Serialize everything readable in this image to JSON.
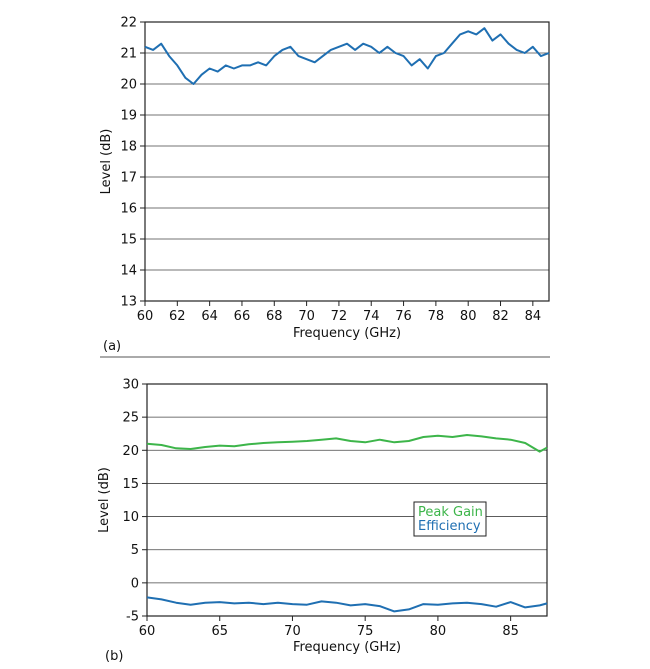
{
  "chart_data": [
    {
      "type": "line",
      "panel_label": "(a)",
      "xlabel": "Frequency (GHz)",
      "ylabel": "Level (dB)",
      "xlim": [
        60,
        85
      ],
      "ylim": [
        13,
        22
      ],
      "xticks": [
        60,
        62,
        64,
        66,
        68,
        70,
        72,
        74,
        76,
        78,
        80,
        82,
        84
      ],
      "yticks": [
        13,
        14,
        15,
        16,
        17,
        18,
        19,
        20,
        21,
        22
      ],
      "grid": "horizontal",
      "series": [
        {
          "color": "#1f6fb2",
          "x": [
            60.0,
            60.5,
            61.0,
            61.5,
            62.0,
            62.5,
            63.0,
            63.5,
            64.0,
            64.5,
            65.0,
            65.5,
            66.0,
            66.5,
            67.0,
            67.5,
            68.0,
            68.5,
            69.0,
            69.5,
            70.0,
            70.5,
            71.0,
            71.5,
            72.0,
            72.5,
            73.0,
            73.5,
            74.0,
            74.5,
            75.0,
            75.5,
            76.0,
            76.5,
            77.0,
            77.5,
            78.0,
            78.5,
            79.0,
            79.5,
            80.0,
            80.5,
            81.0,
            81.5,
            82.0,
            82.5,
            83.0,
            83.5,
            84.0,
            84.5,
            85.0
          ],
          "y": [
            21.2,
            21.1,
            21.3,
            20.9,
            20.6,
            20.2,
            20.0,
            20.3,
            20.5,
            20.4,
            20.6,
            20.5,
            20.6,
            20.6,
            20.7,
            20.6,
            20.9,
            21.1,
            21.2,
            20.9,
            20.8,
            20.7,
            20.9,
            21.1,
            21.2,
            21.3,
            21.1,
            21.3,
            21.2,
            21.0,
            21.2,
            21.0,
            20.9,
            20.6,
            20.8,
            20.5,
            20.9,
            21.0,
            21.3,
            21.6,
            21.7,
            21.6,
            21.8,
            21.4,
            21.6,
            21.3,
            21.1,
            21.0,
            21.2,
            20.9,
            21.0
          ]
        }
      ]
    },
    {
      "type": "line",
      "panel_label": "(b)",
      "xlabel": "Frequency (GHz)",
      "ylabel": "Level (dB)",
      "xlim": [
        60,
        87.5
      ],
      "ylim": [
        -5,
        30
      ],
      "xticks": [
        60,
        65,
        70,
        75,
        80,
        85
      ],
      "yticks": [
        -5,
        0,
        5,
        10,
        15,
        20,
        25,
        30
      ],
      "grid": "horizontal",
      "legend_position": "center-right",
      "series": [
        {
          "name": "Peak Gain",
          "color": "#3db54a",
          "x": [
            60,
            61,
            62,
            63,
            64,
            65,
            66,
            67,
            68,
            69,
            70,
            71,
            72,
            73,
            74,
            75,
            76,
            77,
            78,
            79,
            80,
            81,
            82,
            83,
            84,
            85,
            86,
            87,
            87.5
          ],
          "y": [
            21.0,
            20.8,
            20.3,
            20.2,
            20.5,
            20.7,
            20.6,
            20.9,
            21.1,
            21.2,
            21.3,
            21.4,
            21.6,
            21.8,
            21.4,
            21.2,
            21.6,
            21.2,
            21.4,
            22.0,
            22.2,
            22.0,
            22.3,
            22.1,
            21.8,
            21.6,
            21.1,
            19.8,
            20.4
          ]
        },
        {
          "name": "Efficiency",
          "color": "#1f6fb2",
          "x": [
            60,
            61,
            62,
            63,
            64,
            65,
            66,
            67,
            68,
            69,
            70,
            71,
            72,
            73,
            74,
            75,
            76,
            77,
            78,
            79,
            80,
            81,
            82,
            83,
            84,
            85,
            86,
            87,
            87.5
          ],
          "y": [
            -2.2,
            -2.5,
            -3.0,
            -3.3,
            -3.0,
            -2.9,
            -3.1,
            -3.0,
            -3.2,
            -3.0,
            -3.2,
            -3.3,
            -2.8,
            -3.0,
            -3.4,
            -3.2,
            -3.5,
            -4.3,
            -4.0,
            -3.2,
            -3.3,
            -3.1,
            -3.0,
            -3.2,
            -3.6,
            -2.9,
            -3.7,
            -3.4,
            -3.1
          ]
        }
      ]
    }
  ]
}
